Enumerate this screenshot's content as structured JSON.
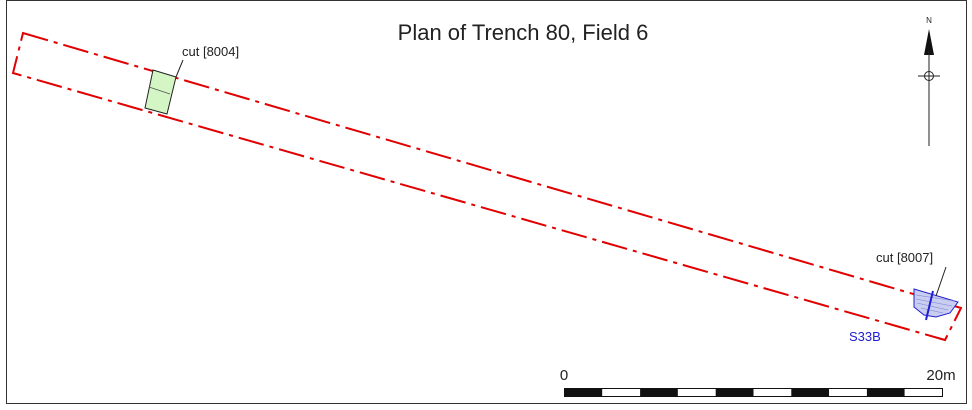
{
  "title": "Plan of Trench 80, Field 6",
  "north_label": "N",
  "cuts": [
    {
      "label": "cut [8004]",
      "fill": "#d4f5c4"
    },
    {
      "label": "cut [8007]",
      "fill": "#c9cdf0"
    }
  ],
  "section_label": "S33B",
  "scale_bar": {
    "start_label": "0",
    "end_label": "20m",
    "segments": 10
  },
  "colors": {
    "trench_outline": "#e00000",
    "section_line": "#2020d0",
    "frame": "#333333",
    "ink": "#222222"
  }
}
